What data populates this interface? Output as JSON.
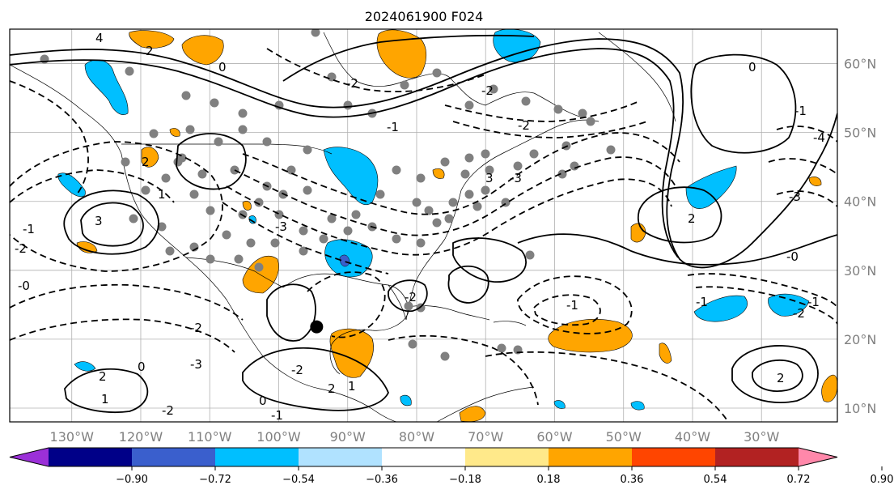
{
  "title": "2024061900 F024",
  "map": {
    "lat_labels": [
      "60°N",
      "50°N",
      "40°N",
      "30°N",
      "20°N",
      "10°N"
    ],
    "lat_values": [
      60,
      50,
      40,
      30,
      20,
      10
    ],
    "lon_labels": [
      "130°W",
      "120°W",
      "110°W",
      "100°W",
      "90°W",
      "80°W",
      "70°W",
      "60°W",
      "50°W",
      "40°W",
      "30°W"
    ],
    "lon_values": [
      -130,
      -120,
      -110,
      -100,
      -90,
      -80,
      -70,
      -60,
      -50,
      -40,
      -30
    ],
    "extent": {
      "lon_min": -139,
      "lon_max": -19,
      "lat_min": 8,
      "lat_max": 65
    },
    "contour_labels": [
      "4",
      "2",
      "0",
      "-2",
      "-1",
      "2",
      "3",
      "-3",
      "-2",
      "-1",
      "-3",
      "-2",
      "-2",
      "2",
      "-1",
      "-4",
      "-3",
      "0",
      "-1",
      "2",
      "-0",
      "-2",
      "-3",
      "-2",
      "-1",
      "0",
      "1",
      "-2",
      "3",
      "2",
      "1",
      "-2",
      "-1",
      "2",
      "1",
      "0",
      "-0",
      "-1",
      "-2"
    ],
    "tropical_marker": {
      "lon": -94.5,
      "lat": 21.8
    }
  },
  "colorbar": {
    "colors": [
      "#9b30d8",
      "#000088",
      "#3a5fcd",
      "#00bfff",
      "#b0e2ff",
      "#ffffff",
      "#ffe98a",
      "#ffa500",
      "#ff4500",
      "#b22222",
      "#ff88aa"
    ],
    "ticks": [
      "−0.90",
      "−0.72",
      "−0.54",
      "−0.36",
      "−0.18",
      "0.18",
      "0.36",
      "0.54",
      "0.72",
      "0.90"
    ],
    "tick_values": [
      -0.9,
      -0.72,
      -0.54,
      -0.36,
      -0.18,
      0.18,
      0.36,
      0.54,
      0.72,
      0.9
    ]
  },
  "colors": {
    "positive_fill": "#ffa500",
    "negative_fill": "#00bfff",
    "strong_negative_fill": "#3a5fcd",
    "station_dot": "#808080",
    "grid": "#b0b0b0",
    "axis_label": "#808080"
  }
}
